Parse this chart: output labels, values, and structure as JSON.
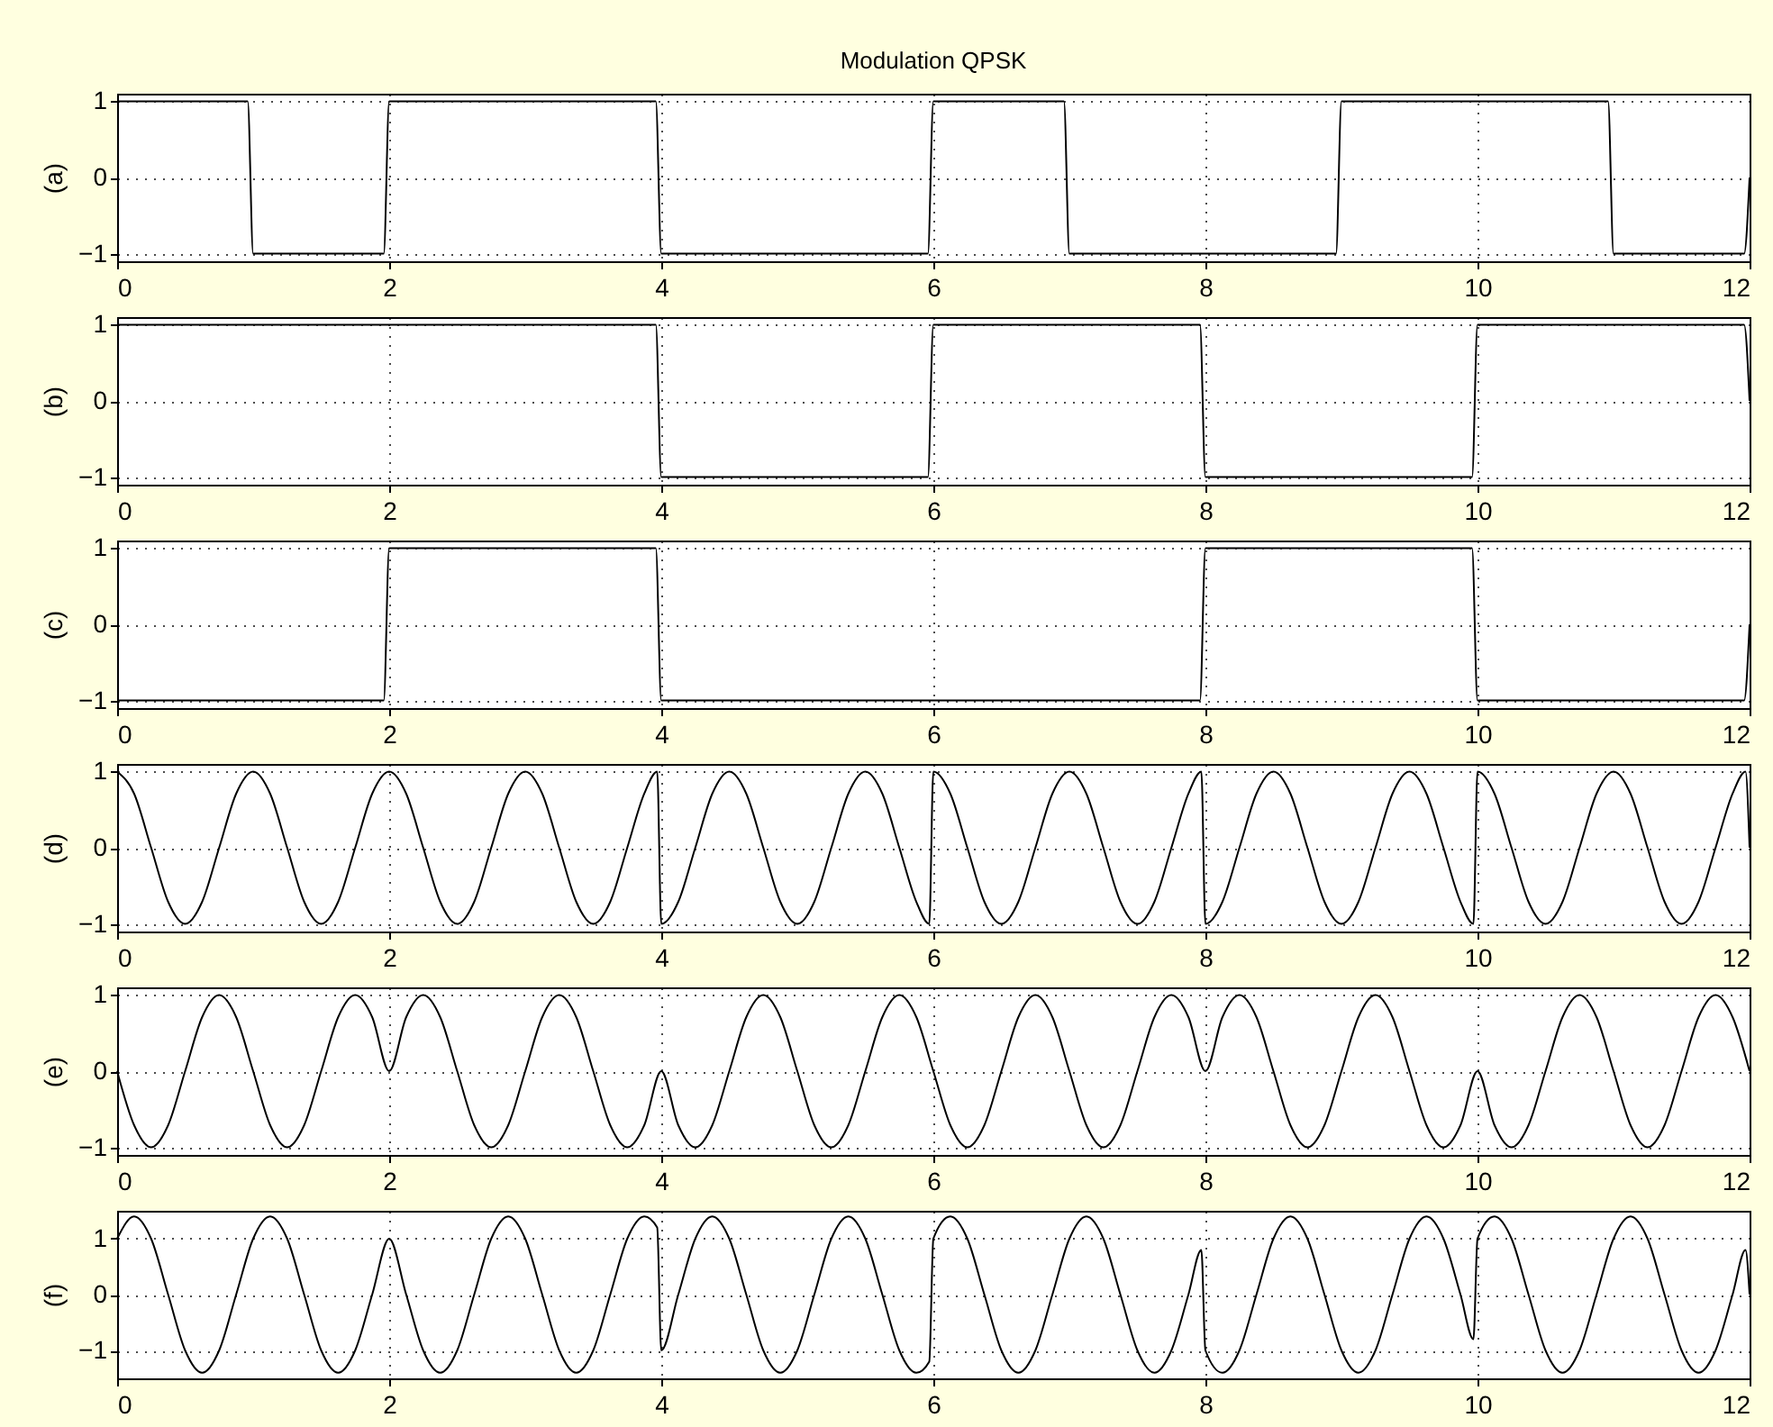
{
  "chart_data": [
    {
      "type": "line",
      "title": "Modulation QPSK",
      "ylabel": "(a)",
      "x": [
        0,
        0.96,
        1,
        1.96,
        2,
        3.96,
        4,
        5.96,
        6,
        6.96,
        7,
        8.96,
        9,
        10.96,
        11,
        11.96,
        12
      ],
      "series": [
        {
          "color": "#000000",
          "values": [
            1,
            1,
            -1,
            -1,
            1,
            1,
            -1,
            -1,
            1,
            1,
            -1,
            -1,
            1,
            1,
            -1,
            -1,
            0
          ]
        }
      ],
      "xlim": [
        0,
        12
      ],
      "xticks": [
        0,
        2,
        4,
        6,
        8,
        10,
        12
      ],
      "ylim": [
        -1.1,
        1.1
      ],
      "yticks": [
        -1,
        0,
        1
      ],
      "grid": true
    },
    {
      "type": "line",
      "ylabel": "(b)",
      "x": [
        0,
        3.96,
        4,
        5.96,
        6,
        7.96,
        8,
        9.96,
        10,
        11.96,
        12
      ],
      "series": [
        {
          "color": "#000000",
          "values": [
            1,
            1,
            -1,
            -1,
            1,
            1,
            -1,
            -1,
            1,
            1,
            0
          ]
        }
      ],
      "xlim": [
        0,
        12
      ],
      "xticks": [
        0,
        2,
        4,
        6,
        8,
        10,
        12
      ],
      "ylim": [
        -1.1,
        1.1
      ],
      "yticks": [
        -1,
        0,
        1
      ],
      "grid": true
    },
    {
      "type": "line",
      "ylabel": "(c)",
      "x": [
        0,
        1.96,
        2,
        3.96,
        4,
        7.96,
        8,
        9.96,
        10,
        11.96,
        12
      ],
      "series": [
        {
          "color": "#000000",
          "values": [
            -1,
            -1,
            1,
            1,
            -1,
            -1,
            1,
            1,
            -1,
            -1,
            0
          ]
        }
      ],
      "xlim": [
        0,
        12
      ],
      "xticks": [
        0,
        2,
        4,
        6,
        8,
        10,
        12
      ],
      "ylim": [
        -1.1,
        1.1
      ],
      "yticks": [
        -1,
        0,
        1
      ],
      "grid": true
    },
    {
      "type": "line",
      "ylabel": "(d)",
      "x": [
        0,
        0.125,
        0.25,
        0.375,
        0.5,
        0.625,
        0.75,
        0.875,
        1,
        1.125,
        1.25,
        1.375,
        1.5,
        1.625,
        1.75,
        1.875,
        2,
        2.125,
        2.25,
        2.375,
        2.5,
        2.625,
        2.75,
        2.875,
        3,
        3.125,
        3.25,
        3.375,
        3.5,
        3.625,
        3.75,
        3.875,
        3.97,
        4,
        4.125,
        4.25,
        4.375,
        4.5,
        4.625,
        4.75,
        4.875,
        5,
        5.125,
        5.25,
        5.375,
        5.5,
        5.625,
        5.75,
        5.875,
        5.97,
        6,
        6.125,
        6.25,
        6.375,
        6.5,
        6.625,
        6.75,
        6.875,
        7,
        7.125,
        7.25,
        7.375,
        7.5,
        7.625,
        7.75,
        7.875,
        7.97,
        8,
        8.125,
        8.25,
        8.375,
        8.5,
        8.625,
        8.75,
        8.875,
        9,
        9.125,
        9.25,
        9.375,
        9.5,
        9.625,
        9.75,
        9.875,
        9.97,
        10,
        10.125,
        10.25,
        10.375,
        10.5,
        10.625,
        10.75,
        10.875,
        11,
        11.125,
        11.25,
        11.375,
        11.5,
        11.625,
        11.75,
        11.875,
        11.97,
        12
      ],
      "series": [
        {
          "color": "#000000",
          "values": [
            1,
            0.71,
            0,
            -0.71,
            -1,
            -0.71,
            0,
            0.71,
            1,
            0.71,
            0,
            -0.71,
            -1,
            -0.71,
            0,
            0.71,
            1,
            0.71,
            0,
            -0.71,
            -1,
            -0.71,
            0,
            0.71,
            1,
            0.71,
            0,
            -0.71,
            -1,
            -0.71,
            0,
            0.71,
            1,
            -1,
            -0.71,
            0,
            0.71,
            1,
            0.71,
            0,
            -0.71,
            -1,
            -0.71,
            0,
            0.71,
            1,
            0.71,
            0,
            -0.71,
            -1,
            1,
            0.71,
            0,
            -0.71,
            -1,
            -0.71,
            0,
            0.71,
            1,
            0.71,
            0,
            -0.71,
            -1,
            -0.71,
            0,
            0.71,
            1,
            -1,
            -0.71,
            0,
            0.71,
            1,
            0.71,
            0,
            -0.71,
            -1,
            -0.71,
            0,
            0.71,
            1,
            0.71,
            0,
            -0.71,
            -1,
            1,
            0.71,
            0,
            -0.71,
            -1,
            -0.71,
            0,
            0.71,
            1,
            0.71,
            0,
            -0.71,
            -1,
            -0.71,
            0,
            0.71,
            1,
            0
          ]
        }
      ],
      "xlim": [
        0,
        12
      ],
      "xticks": [
        0,
        2,
        4,
        6,
        8,
        10,
        12
      ],
      "ylim": [
        -1.1,
        1.1
      ],
      "yticks": [
        -1,
        0,
        1
      ],
      "grid": true
    },
    {
      "type": "line",
      "ylabel": "(e)",
      "x": [
        0,
        0.125,
        0.25,
        0.375,
        0.5,
        0.625,
        0.75,
        0.875,
        1,
        1.125,
        1.25,
        1.375,
        1.5,
        1.625,
        1.75,
        1.875,
        2,
        2.125,
        2.25,
        2.375,
        2.5,
        2.625,
        2.75,
        2.875,
        3,
        3.125,
        3.25,
        3.375,
        3.5,
        3.625,
        3.75,
        3.875,
        4,
        4.125,
        4.25,
        4.375,
        4.5,
        4.625,
        4.75,
        4.875,
        5,
        5.125,
        5.25,
        5.375,
        5.5,
        5.625,
        5.75,
        5.875,
        6,
        6.125,
        6.25,
        6.375,
        6.5,
        6.625,
        6.75,
        6.875,
        7,
        7.125,
        7.25,
        7.375,
        7.5,
        7.625,
        7.75,
        7.875,
        8,
        8.125,
        8.25,
        8.375,
        8.5,
        8.625,
        8.75,
        8.875,
        9,
        9.125,
        9.25,
        9.375,
        9.5,
        9.625,
        9.75,
        9.875,
        10,
        10.125,
        10.25,
        10.375,
        10.5,
        10.625,
        10.75,
        10.875,
        11,
        11.125,
        11.25,
        11.375,
        11.5,
        11.625,
        11.75,
        11.875,
        12
      ],
      "series": [
        {
          "color": "#000000",
          "values": [
            0,
            -0.71,
            -1,
            -0.71,
            0,
            0.71,
            1,
            0.71,
            0,
            -0.71,
            -1,
            -0.71,
            0,
            0.71,
            1,
            0.71,
            0,
            0.71,
            1,
            0.71,
            0,
            -0.71,
            -1,
            -0.71,
            0,
            0.71,
            1,
            0.71,
            0,
            -0.71,
            -1,
            -0.71,
            0,
            -0.71,
            -1,
            -0.71,
            0,
            0.71,
            1,
            0.71,
            0,
            -0.71,
            -1,
            -0.71,
            0,
            0.71,
            1,
            0.71,
            0,
            -0.71,
            -1,
            -0.71,
            0,
            0.71,
            1,
            0.71,
            0,
            -0.71,
            -1,
            -0.71,
            0,
            0.71,
            1,
            0.71,
            0,
            0.71,
            1,
            0.71,
            0,
            -0.71,
            -1,
            -0.71,
            0,
            0.71,
            1,
            0.71,
            0,
            -0.71,
            -1,
            -0.71,
            0,
            -0.71,
            -1,
            -0.71,
            0,
            0.71,
            1,
            0.71,
            0,
            -0.71,
            -1,
            -0.71,
            0,
            0.71,
            1,
            0.71,
            0
          ]
        }
      ],
      "xlim": [
        0,
        12
      ],
      "xticks": [
        0,
        2,
        4,
        6,
        8,
        10,
        12
      ],
      "ylim": [
        -1.1,
        1.1
      ],
      "yticks": [
        -1,
        0,
        1
      ],
      "grid": true
    },
    {
      "type": "line",
      "ylabel": "(f)",
      "x": [
        0,
        0.125,
        0.25,
        0.375,
        0.5,
        0.625,
        0.75,
        0.875,
        1,
        1.125,
        1.25,
        1.375,
        1.5,
        1.625,
        1.75,
        1.875,
        2,
        2.125,
        2.25,
        2.375,
        2.5,
        2.625,
        2.75,
        2.875,
        3,
        3.125,
        3.25,
        3.375,
        3.5,
        3.625,
        3.75,
        3.875,
        3.97,
        4,
        4.125,
        4.25,
        4.375,
        4.5,
        4.625,
        4.75,
        4.875,
        5,
        5.125,
        5.25,
        5.375,
        5.5,
        5.625,
        5.75,
        5.875,
        5.97,
        6,
        6.125,
        6.25,
        6.375,
        6.5,
        6.625,
        6.75,
        6.875,
        7,
        7.125,
        7.25,
        7.375,
        7.5,
        7.625,
        7.75,
        7.875,
        7.97,
        8,
        8.125,
        8.25,
        8.375,
        8.5,
        8.625,
        8.75,
        8.875,
        9,
        9.125,
        9.25,
        9.375,
        9.5,
        9.625,
        9.75,
        9.875,
        9.97,
        10,
        10.125,
        10.25,
        10.375,
        10.5,
        10.625,
        10.75,
        10.875,
        11,
        11.125,
        11.25,
        11.375,
        11.5,
        11.625,
        11.75,
        11.875,
        11.97,
        12
      ],
      "series": [
        {
          "color": "#000000",
          "values": [
            1,
            1.4,
            1,
            0,
            -1,
            -1.4,
            -1,
            0,
            1,
            1.4,
            1,
            0,
            -1,
            -1.4,
            -1,
            0,
            1,
            0,
            -1,
            -1.4,
            -1,
            0,
            1,
            1.4,
            1,
            0,
            -1,
            -1.4,
            -1,
            0,
            1,
            1.4,
            1.2,
            -1,
            0,
            1,
            1.4,
            1,
            0,
            -1,
            -1.4,
            -1,
            0,
            1,
            1.4,
            1,
            0,
            -1,
            -1.4,
            -1.2,
            1,
            1.4,
            1,
            0,
            -1,
            -1.4,
            -1,
            0,
            1,
            1.4,
            1,
            0,
            -1,
            -1.4,
            -1,
            0,
            0.8,
            -1,
            -1.4,
            -1,
            0,
            1,
            1.4,
            1,
            0,
            -1,
            -1.4,
            -1,
            0,
            1,
            1.4,
            1,
            0,
            -0.8,
            1,
            1.4,
            1,
            0,
            -1,
            -1.4,
            -1,
            0,
            1,
            1.4,
            1,
            0,
            -1,
            -1.4,
            -1,
            0,
            0.8,
            0
          ]
        }
      ],
      "xlim": [
        0,
        12
      ],
      "xticks": [
        0,
        2,
        4,
        6,
        8,
        10,
        12
      ],
      "ylim": [
        -1.5,
        1.5
      ],
      "yticks": [
        -1,
        0,
        1
      ],
      "grid": true
    }
  ]
}
